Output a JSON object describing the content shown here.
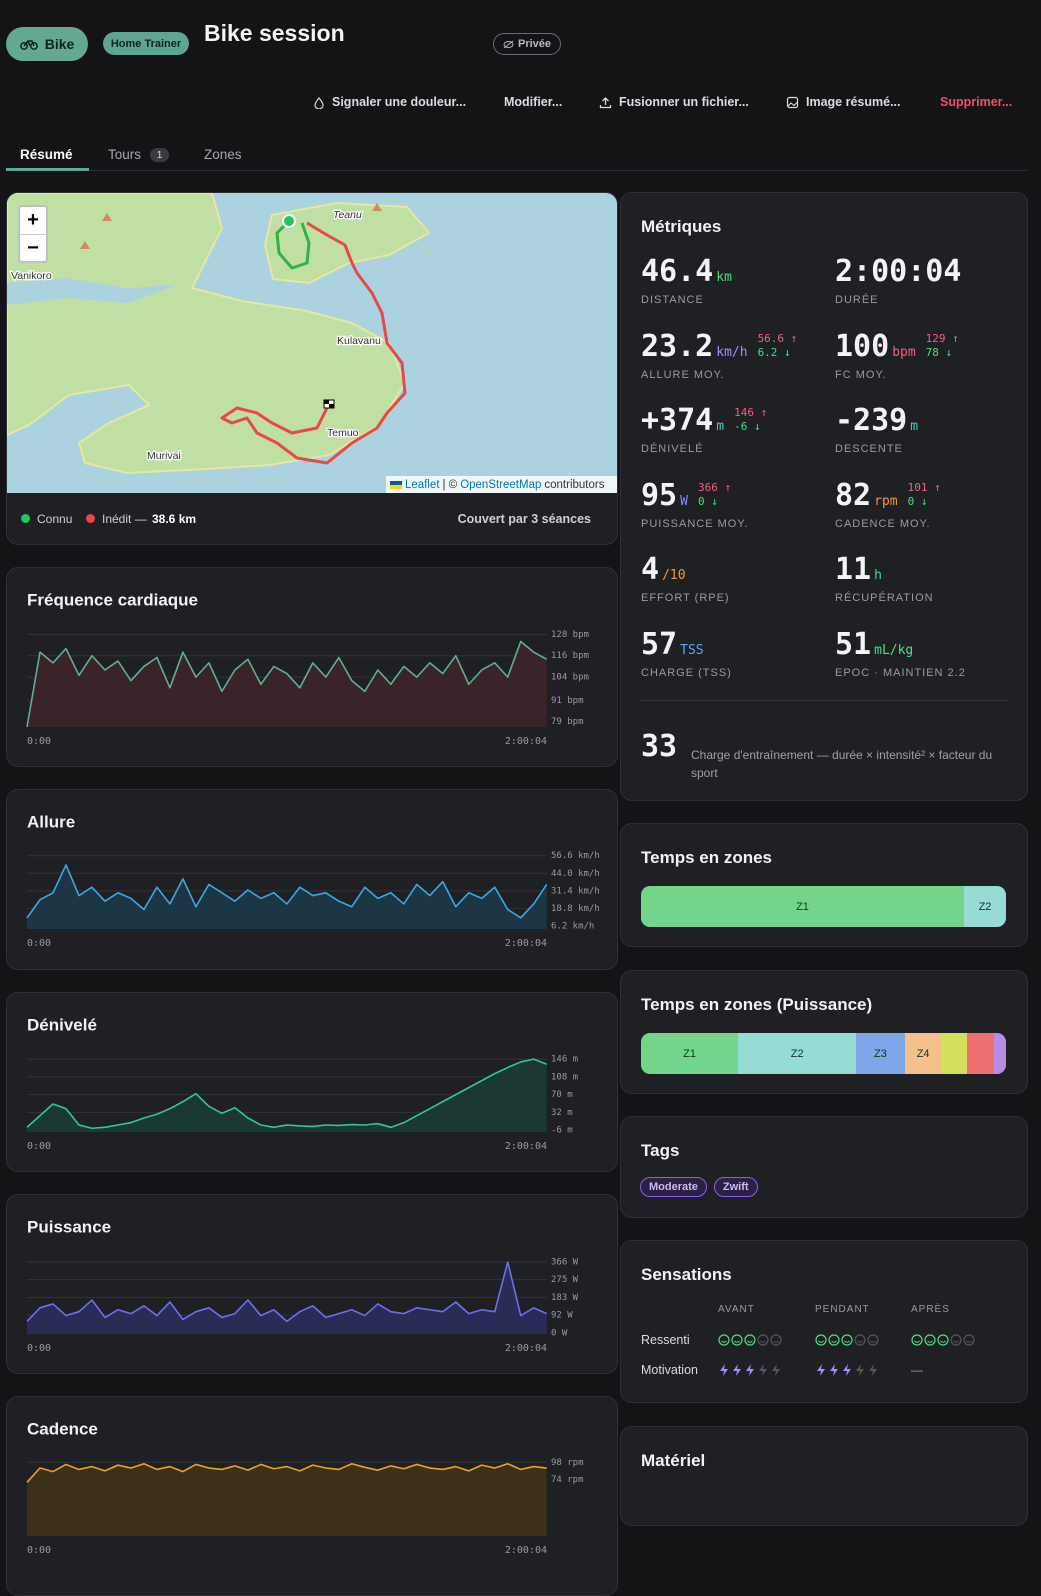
{
  "header": {
    "sport": "Bike",
    "tag": "Home Trainer",
    "title": "Bike session",
    "privacy": "Privée"
  },
  "actions": [
    "Signaler une douleur...",
    "Modifier...",
    "Fusionner un fichier...",
    "Image résumé...",
    "Supprimer..."
  ],
  "tabs": [
    {
      "label": "Résumé"
    },
    {
      "label": "Tours",
      "count": "1"
    },
    {
      "label": "Zones"
    }
  ],
  "map": {
    "zoom_in": "+",
    "zoom_out": "−",
    "places": [
      "Teanu",
      "Vanikoro",
      "Kulavanu",
      "Temuo",
      "Murivai"
    ],
    "attribution": {
      "library": "Leaflet",
      "separator": "| ©",
      "source": "OpenStreetMap",
      "suffix": "contributors"
    },
    "legend": {
      "known": "Connu",
      "new": "Inédit —",
      "new_distance": "38.6 km",
      "coverage": "Couvert par 3 séances"
    }
  },
  "chart_data": [
    {
      "type": "line",
      "title": "Fréquence cardiaque",
      "color": "#5fae9a",
      "fill": "#3a2428",
      "x": [
        0,
        180,
        360,
        540,
        720,
        900,
        1080,
        1260,
        1440,
        1620,
        1800,
        1980,
        2160,
        2340,
        2520,
        2700,
        2880,
        3060,
        3240,
        3420,
        3600,
        3780,
        3960,
        4140,
        4320,
        4500,
        4680,
        4860,
        5040,
        5220,
        5400,
        5580,
        5760,
        5940,
        6120,
        6300,
        6480,
        6660,
        6840,
        7020,
        7200
      ],
      "values": [
        76,
        118,
        112,
        120,
        105,
        116,
        108,
        113,
        102,
        110,
        115,
        98,
        118,
        104,
        112,
        96,
        108,
        114,
        100,
        110,
        106,
        98,
        112,
        104,
        115,
        102,
        96,
        108,
        100,
        110,
        104,
        112,
        106,
        116,
        100,
        108,
        112,
        104,
        124,
        118,
        114
      ],
      "xlim": [
        0,
        7204
      ],
      "xticks": [
        {
          "value": 0,
          "label": "0:00"
        },
        {
          "value": 7204,
          "label": "2:00:04"
        }
      ],
      "ylim": [
        76,
        131
      ],
      "grid": true,
      "yticks": [
        {
          "value": 128,
          "label": "128 bpm"
        },
        {
          "value": 116,
          "label": "116 bpm"
        },
        {
          "value": 104,
          "label": "104 bpm"
        },
        {
          "value": 91,
          "label": "91 bpm"
        },
        {
          "value": 79,
          "label": "79 bpm"
        }
      ]
    },
    {
      "type": "line",
      "title": "Allure",
      "color": "#38a9e4",
      "fill": "#1c3646",
      "x": [
        0,
        180,
        360,
        540,
        720,
        900,
        1080,
        1260,
        1440,
        1620,
        1800,
        1980,
        2160,
        2340,
        2520,
        2700,
        2880,
        3060,
        3240,
        3420,
        3600,
        3780,
        3960,
        4140,
        4320,
        4500,
        4680,
        4860,
        5040,
        5220,
        5400,
        5580,
        5760,
        5940,
        6120,
        6300,
        6480,
        6660,
        6840,
        7020,
        7200
      ],
      "values": [
        12,
        25,
        30,
        50,
        28,
        34,
        24,
        30,
        26,
        18,
        34,
        22,
        40,
        20,
        36,
        30,
        24,
        32,
        26,
        30,
        22,
        34,
        28,
        30,
        24,
        20,
        34,
        26,
        30,
        22,
        36,
        28,
        38,
        20,
        30,
        26,
        34,
        18,
        12,
        22,
        36
      ],
      "xlim": [
        0,
        7204
      ],
      "xticks": [
        {
          "value": 0,
          "label": "0:00"
        },
        {
          "value": 7204,
          "label": "2:00:04"
        }
      ],
      "ylim": [
        4,
        60
      ],
      "grid": true,
      "yticks": [
        {
          "value": 56.6,
          "label": "56.6 km/h"
        },
        {
          "value": 44.0,
          "label": "44.0 km/h"
        },
        {
          "value": 31.4,
          "label": "31.4 km/h"
        },
        {
          "value": 18.8,
          "label": "18.8 km/h"
        },
        {
          "value": 6.2,
          "label": "6.2 km/h"
        }
      ]
    },
    {
      "type": "line",
      "title": "Dénivelé",
      "color": "#2fc7a0",
      "fill": "#1b3833",
      "x": [
        0,
        180,
        360,
        540,
        720,
        900,
        1080,
        1260,
        1440,
        1620,
        1800,
        1980,
        2160,
        2340,
        2520,
        2700,
        2880,
        3060,
        3240,
        3420,
        3600,
        3780,
        3960,
        4140,
        4320,
        4500,
        4680,
        4860,
        5040,
        5220,
        5400,
        5580,
        5760,
        5940,
        6120,
        6300,
        6480,
        6660,
        6840,
        7020,
        7200
      ],
      "values": [
        0,
        25,
        50,
        40,
        5,
        -2,
        0,
        5,
        10,
        20,
        28,
        40,
        55,
        72,
        45,
        30,
        42,
        20,
        5,
        0,
        5,
        3,
        2,
        5,
        4,
        6,
        5,
        8,
        0,
        10,
        25,
        40,
        55,
        70,
        85,
        100,
        115,
        128,
        140,
        146,
        135
      ],
      "xlim": [
        0,
        7204
      ],
      "xticks": [
        {
          "value": 0,
          "label": "0:00"
        },
        {
          "value": 7204,
          "label": "2:00:04"
        }
      ],
      "ylim": [
        -10,
        157
      ],
      "grid": true,
      "yticks": [
        {
          "value": 146,
          "label": "146 m"
        },
        {
          "value": 108,
          "label": "108 m"
        },
        {
          "value": 70,
          "label": "70 m"
        },
        {
          "value": 32,
          "label": "32 m"
        },
        {
          "value": -6,
          "label": "-6 m"
        }
      ]
    },
    {
      "type": "line",
      "title": "Puissance",
      "color": "#6b70f0",
      "fill": "#2a2c55",
      "x": [
        0,
        180,
        360,
        540,
        720,
        900,
        1080,
        1260,
        1440,
        1620,
        1800,
        1980,
        2160,
        2340,
        2520,
        2700,
        2880,
        3060,
        3240,
        3420,
        3600,
        3780,
        3960,
        4140,
        4320,
        4500,
        4680,
        4860,
        5040,
        5220,
        5400,
        5580,
        5760,
        5940,
        6120,
        6300,
        6480,
        6660,
        6840,
        7020,
        7200
      ],
      "values": [
        60,
        130,
        150,
        90,
        110,
        170,
        80,
        120,
        100,
        140,
        90,
        160,
        70,
        110,
        130,
        80,
        100,
        170,
        90,
        120,
        60,
        110,
        140,
        80,
        100,
        120,
        90,
        150,
        110,
        100,
        130,
        120,
        110,
        160,
        100,
        120,
        110,
        366,
        90,
        130,
        100
      ],
      "xlim": [
        0,
        7204
      ],
      "xticks": [
        {
          "value": 0,
          "label": "0:00"
        },
        {
          "value": 7204,
          "label": "2:00:04"
        }
      ],
      "ylim": [
        -5,
        397
      ],
      "grid": true,
      "yticks": [
        {
          "value": 366,
          "label": "366 W"
        },
        {
          "value": 275,
          "label": "275 W"
        },
        {
          "value": 183,
          "label": "183 W"
        },
        {
          "value": 92,
          "label": "92 W"
        },
        {
          "value": 0,
          "label": "0 W"
        }
      ]
    },
    {
      "type": "line",
      "title": "Cadence",
      "color": "#f0a020",
      "fill": "#3d3018",
      "x": [
        0,
        180,
        360,
        540,
        720,
        900,
        1080,
        1260,
        1440,
        1620,
        1800,
        1980,
        2160,
        2340,
        2520,
        2700,
        2880,
        3060,
        3240,
        3420,
        3600,
        3780,
        3960,
        4140,
        4320,
        4500,
        4680,
        4860,
        5040,
        5220,
        5400,
        5580,
        5760,
        5940,
        6120,
        6300,
        6480,
        6660,
        6840,
        7020,
        7200
      ],
      "values": [
        70,
        90,
        85,
        95,
        88,
        92,
        86,
        94,
        90,
        96,
        88,
        92,
        85,
        95,
        90,
        88,
        93,
        87,
        95,
        89,
        92,
        86,
        94,
        90,
        88,
        96,
        91,
        87,
        93,
        89,
        95,
        90,
        88,
        92,
        86,
        94,
        90,
        96,
        88,
        92,
        90
      ],
      "xlim": [
        0,
        7204
      ],
      "xticks": [
        {
          "value": 0,
          "label": "0:00"
        },
        {
          "value": 7204,
          "label": "2:00:04"
        }
      ],
      "ylim": [
        -5,
        104
      ],
      "grid": true,
      "yticks": [
        {
          "value": 98,
          "label": "98 rpm"
        },
        {
          "value": 74,
          "label": "74 rpm"
        }
      ]
    }
  ],
  "metrics": {
    "title": "Métriques",
    "max_color": "#f0607f",
    "min_color": "#4ade80",
    "items": [
      {
        "value": "46.4",
        "unit": "km",
        "color": "#4ade80",
        "label": "DISTANCE"
      },
      {
        "value": "2:00:04",
        "label": "DURÉE"
      },
      {
        "value": "23.2",
        "unit": "km/h",
        "color": "#a78bfa",
        "label": "ALLURE MOY.",
        "max": "56.6 ↑",
        "min": "6.2 ↓"
      },
      {
        "value": "100",
        "unit": "bpm",
        "color": "#f0607f",
        "label": "FC MOY.",
        "max": "129 ↑",
        "min": "78 ↓"
      },
      {
        "value": "+374",
        "unit": "m",
        "color": "#2dd4bf",
        "label": "DÉNIVELÉ",
        "max": "146 ↑",
        "min": "-6 ↓"
      },
      {
        "value": "-239",
        "unit": "m",
        "color": "#2dd4bf",
        "label": "DESCENTE"
      },
      {
        "value": "95",
        "unit": "W",
        "color": "#818cf8",
        "label": "PUISSANCE MOY.",
        "max": "366 ↑",
        "min": "0 ↓"
      },
      {
        "value": "82",
        "unit": "rpm",
        "color": "#fb923c",
        "label": "CADENCE MOY.",
        "max": "101 ↑",
        "min": "0 ↓"
      },
      {
        "value": "4",
        "unit": "/10",
        "color": "#fb923c",
        "label": "EFFORT (RPE)"
      },
      {
        "value": "11",
        "unit": "h",
        "color": "#4ade80",
        "label": "RÉCUPÉRATION"
      },
      {
        "value": "57",
        "unit": "TSS",
        "color": "#60a5fa",
        "label": "CHARGE (TSS)"
      },
      {
        "value": "51",
        "unit": "mL/kg",
        "color": "#4ade80",
        "label": "EPOC · MAINTIEN 2.2"
      }
    ],
    "load": {
      "value": "33",
      "text": "Charge d'entraînement — durée × intensité² × facteur du sport"
    }
  },
  "zones": [
    {
      "title": "Temps en zones",
      "segments": [
        {
          "label": "Z1",
          "share": 88.5,
          "color": "#72d58a"
        },
        {
          "label": "Z2",
          "share": 11.5,
          "color": "#96dcd3"
        }
      ]
    },
    {
      "title": "Temps en zones (Puissance)",
      "segments": [
        {
          "label": "Z1",
          "share": 26.6,
          "color": "#72d58a"
        },
        {
          "label": "Z2",
          "share": 32.4,
          "color": "#96dcd3"
        },
        {
          "label": "Z3",
          "share": 13.2,
          "color": "#7ea6e8"
        },
        {
          "label": "Z4",
          "share": 10.2,
          "color": "#f5c089"
        },
        {
          "label": null,
          "share": 6.9,
          "color": "#d3e05a"
        },
        {
          "label": null,
          "share": 7.4,
          "color": "#ef7070"
        },
        {
          "label": null,
          "share": 3.3,
          "color": "#b98de6"
        }
      ]
    }
  ],
  "tags": {
    "title": "Tags",
    "items": [
      "Moderate",
      "Zwift"
    ]
  },
  "sensations": {
    "title": "Sensations",
    "columns": [
      "AVANT",
      "PENDANT",
      "APRÈS"
    ],
    "scale": 5,
    "no_value": "—",
    "rows": [
      {
        "label": "Ressenti",
        "values": [
          3,
          3,
          3
        ]
      },
      {
        "label": "Motivation",
        "values": [
          3,
          3,
          null
        ]
      }
    ]
  },
  "equipment": {
    "title": "Matériel"
  }
}
